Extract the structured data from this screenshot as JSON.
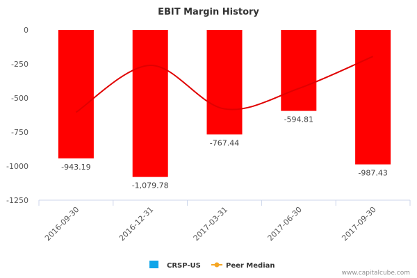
{
  "chart_data": {
    "type": "bar",
    "title": "EBIT Margin History",
    "categories": [
      "2016-09-30",
      "2016-12-31",
      "2017-03-31",
      "2017-06-30",
      "2017-09-30"
    ],
    "series": [
      {
        "name": "CRSP-US",
        "type": "bar",
        "values": [
          -943.19,
          -1079.78,
          -767.44,
          -594.81,
          -987.43
        ],
        "value_labels": [
          "-943.19",
          "-1,079.78",
          "-767.44",
          "-594.81",
          "-987.43"
        ],
        "color": "#ff0000",
        "legend_color": "#0ea5e9"
      },
      {
        "name": "Peer Median",
        "type": "line",
        "smooth": true,
        "values": [
          -605,
          -260,
          -580,
          -430,
          -195
        ],
        "color": "#e00000",
        "legend_color": "#f5a623"
      }
    ],
    "ylim": [
      -1250,
      0
    ],
    "yticks": [
      0,
      -250,
      -500,
      -750,
      -1000,
      -1250
    ],
    "ytick_labels": [
      "0",
      "-250",
      "-500",
      "-750",
      "-1000",
      "-1250"
    ],
    "xlabel": "",
    "ylabel": "",
    "grid": false,
    "legend_position": "bottom-center"
  },
  "credit": "www.capitalcube.com"
}
